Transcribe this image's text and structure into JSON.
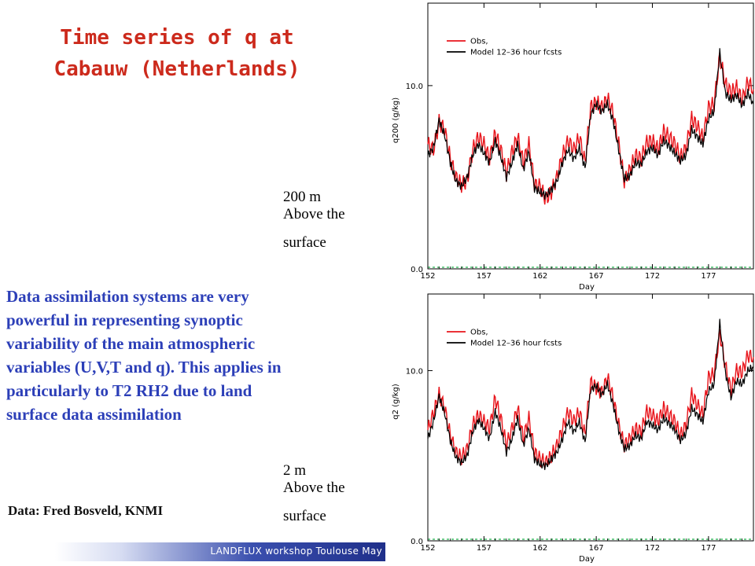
{
  "slide": {
    "title_line1": "Time series of q at",
    "title_line2": "Cabauw (Netherlands)",
    "label_top": {
      "line1": "200 m",
      "line2": "Above the",
      "line3": "surface"
    },
    "label_bottom": {
      "line1": "2 m",
      "line2": "Above the",
      "line3": "surface"
    },
    "body_text": "Data assimilation systems are very powerful in representing synoptic variability of the main atmospheric variables (U,V,T and q). This applies in particularly to T2 RH2 due to land surface data assimilation",
    "credit": "Data: Fred Bosveld, KNMI",
    "footer": "LANDFLUX workshop Toulouse May"
  },
  "colors": {
    "title": "#cc2a1c",
    "body_text": "#2c3fb8",
    "obs": "#e8141b",
    "model": "#000000",
    "zero_line": "#22b14c"
  },
  "chart_data": [
    {
      "type": "line",
      "xlabel": "Day",
      "ylabel": "q200 (g/kg)",
      "xlim": [
        152,
        181
      ],
      "ylim": [
        0,
        14.5
      ],
      "xticks": [
        "152",
        "157",
        "162",
        "167",
        "172",
        "177"
      ],
      "yticks": [
        "0.0",
        "10.0"
      ],
      "legend": {
        "placement": "top-left",
        "entries": [
          "Obs,",
          "Model 12–36 hour fcsts"
        ]
      },
      "x": [
        152.0,
        152.5,
        153.0,
        153.5,
        154.0,
        154.5,
        155.0,
        155.5,
        156.0,
        156.5,
        157.0,
        157.5,
        158.0,
        158.5,
        159.0,
        159.5,
        160.0,
        160.5,
        161.0,
        161.5,
        162.0,
        162.5,
        163.0,
        163.5,
        164.0,
        164.5,
        165.0,
        165.5,
        166.0,
        166.5,
        167.0,
        167.5,
        168.0,
        168.5,
        169.0,
        169.5,
        170.0,
        170.5,
        171.0,
        171.5,
        172.0,
        172.5,
        173.0,
        173.5,
        174.0,
        174.5,
        175.0,
        175.5,
        176.0,
        176.5,
        177.0,
        177.5,
        178.0,
        178.5,
        179.0,
        179.5,
        180.0,
        180.5,
        181.0
      ],
      "series": [
        {
          "name": "Obs,",
          "values": [
            6.8,
            6.5,
            8.0,
            7.6,
            6.0,
            5.0,
            4.6,
            4.8,
            6.5,
            7.2,
            6.8,
            6.0,
            7.4,
            6.5,
            5.2,
            6.4,
            7.2,
            5.8,
            6.8,
            4.6,
            4.5,
            3.8,
            4.2,
            5.0,
            6.2,
            7.0,
            6.5,
            7.2,
            5.8,
            8.8,
            9.1,
            8.8,
            9.3,
            8.5,
            6.8,
            4.8,
            5.4,
            6.2,
            6.0,
            6.9,
            7.0,
            6.5,
            7.5,
            7.2,
            6.8,
            6.1,
            6.6,
            8.2,
            7.8,
            7.1,
            8.8,
            9.0,
            11.6,
            10.1,
            9.6,
            9.9,
            9.2,
            10.2,
            9.8
          ]
        },
        {
          "name": "Model 12–36 hour fcsts",
          "values": [
            6.2,
            6.6,
            8.1,
            7.3,
            5.8,
            4.8,
            4.5,
            5.0,
            6.2,
            6.8,
            6.3,
            5.8,
            7.0,
            6.1,
            5.0,
            5.8,
            6.8,
            5.4,
            6.4,
            4.4,
            4.2,
            4.0,
            4.3,
            4.8,
            5.8,
            6.5,
            6.0,
            6.6,
            5.5,
            8.4,
            9.0,
            8.6,
            9.0,
            8.1,
            6.5,
            4.9,
            5.1,
            5.8,
            5.7,
            6.4,
            6.6,
            6.2,
            7.0,
            6.7,
            6.3,
            5.9,
            6.2,
            7.6,
            7.2,
            6.8,
            8.2,
            8.6,
            11.8,
            9.6,
            9.2,
            9.5,
            8.9,
            9.6,
            9.0
          ]
        }
      ]
    },
    {
      "type": "line",
      "xlabel": "Day",
      "ylabel": "q2 (g/kg)",
      "xlim": [
        152,
        181
      ],
      "ylim": [
        0,
        14.5
      ],
      "xticks": [
        "152",
        "157",
        "162",
        "167",
        "172",
        "177"
      ],
      "yticks": [
        "0.0",
        "10.0"
      ],
      "legend": {
        "placement": "top-left",
        "entries": [
          "Obs,",
          "Model 12–36 hour fcsts"
        ]
      },
      "x": [
        152.0,
        152.5,
        153.0,
        153.5,
        154.0,
        154.5,
        155.0,
        155.5,
        156.0,
        156.5,
        157.0,
        157.5,
        158.0,
        158.5,
        159.0,
        159.5,
        160.0,
        160.5,
        161.0,
        161.5,
        162.0,
        162.5,
        163.0,
        163.5,
        164.0,
        164.5,
        165.0,
        165.5,
        166.0,
        166.5,
        167.0,
        167.5,
        168.0,
        168.5,
        169.0,
        169.5,
        170.0,
        170.5,
        171.0,
        171.5,
        172.0,
        172.5,
        173.0,
        173.5,
        174.0,
        174.5,
        175.0,
        175.5,
        176.0,
        176.5,
        177.0,
        177.5,
        178.0,
        178.5,
        179.0,
        179.5,
        180.0,
        180.5,
        181.0
      ],
      "series": [
        {
          "name": "Obs,",
          "values": [
            6.5,
            7.5,
            8.6,
            7.8,
            6.2,
            5.2,
            4.9,
            5.4,
            6.8,
            7.4,
            7.0,
            6.6,
            8.4,
            7.2,
            5.6,
            6.6,
            7.8,
            6.0,
            7.2,
            5.2,
            4.8,
            4.6,
            5.0,
            5.6,
            6.6,
            7.6,
            7.0,
            7.6,
            6.2,
            9.3,
            9.0,
            8.7,
            9.6,
            8.4,
            6.8,
            5.6,
            6.0,
            6.6,
            6.4,
            7.6,
            7.4,
            7.0,
            7.8,
            7.4,
            7.0,
            6.2,
            6.8,
            8.6,
            8.0,
            7.4,
            9.6,
            9.8,
            12.2,
            10.3,
            8.8,
            10.0,
            9.9,
            10.9,
            10.8
          ]
        },
        {
          "name": "Model 12–36 hour fcsts",
          "values": [
            6.0,
            7.0,
            8.5,
            7.5,
            5.9,
            4.9,
            4.6,
            5.0,
            6.4,
            7.1,
            6.6,
            6.0,
            7.6,
            6.6,
            5.2,
            6.0,
            7.2,
            5.6,
            6.6,
            4.8,
            4.5,
            4.4,
            4.8,
            5.2,
            6.0,
            7.0,
            6.4,
            7.0,
            5.8,
            8.9,
            9.1,
            8.6,
            9.2,
            8.0,
            6.5,
            5.4,
            5.6,
            6.2,
            6.0,
            7.0,
            6.8,
            6.5,
            7.2,
            6.9,
            6.5,
            5.9,
            6.3,
            7.8,
            7.4,
            7.0,
            8.8,
            9.2,
            12.8,
            9.9,
            8.4,
            9.4,
            9.2,
            10.0,
            10.2
          ]
        }
      ]
    }
  ]
}
